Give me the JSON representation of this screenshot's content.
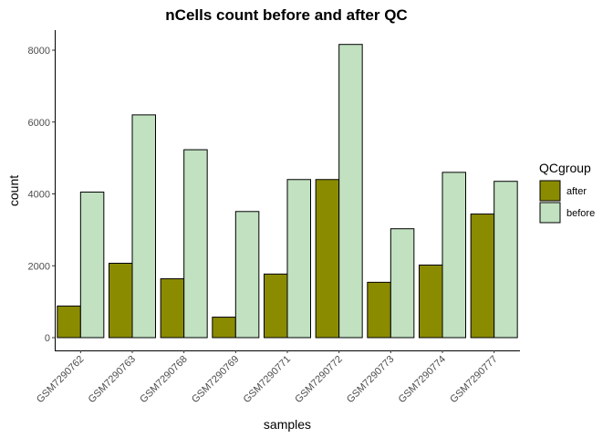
{
  "chart_data": {
    "type": "bar",
    "title": "nCells count before and after QC",
    "xlabel": "samples",
    "ylabel": "count",
    "categories": [
      "GSM7290762",
      "GSM7290763",
      "GSM7290768",
      "GSM7290769",
      "GSM7290771",
      "GSM7290772",
      "GSM7290773",
      "GSM7290774",
      "GSM7290777"
    ],
    "series": [
      {
        "name": "after",
        "color": "#8b8b00",
        "values": [
          880,
          2070,
          1640,
          570,
          1770,
          4400,
          1540,
          2020,
          3440
        ]
      },
      {
        "name": "before",
        "color": "#c1e1c1",
        "values": [
          4050,
          6200,
          5230,
          3510,
          4400,
          8160,
          3030,
          4600,
          4350
        ]
      }
    ],
    "ylim": [
      0,
      8560
    ],
    "yticks": [
      0,
      2000,
      4000,
      6000,
      8000
    ],
    "legend": {
      "title": "QCgroup",
      "position": "right"
    },
    "grid": false
  }
}
